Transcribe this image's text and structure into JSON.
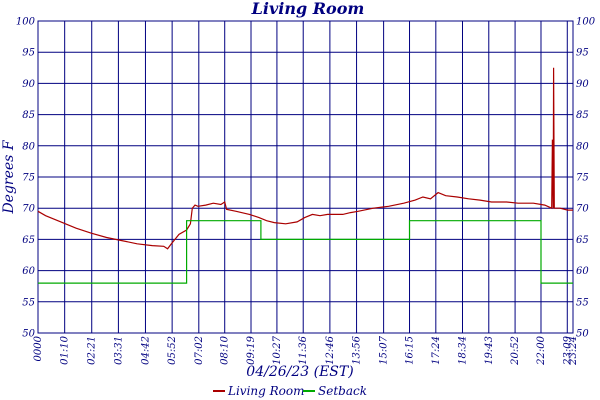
{
  "chart_data": {
    "type": "line",
    "title": "Living Room",
    "xlabel": "04/26/23 (EST)",
    "ylabel": "Degrees F",
    "ylim": [
      50,
      100
    ],
    "yticks": [
      50,
      55,
      60,
      65,
      70,
      75,
      80,
      85,
      90,
      95,
      100
    ],
    "x_unit": "minutes since 00:00",
    "xlim": [
      0,
      1404
    ],
    "xticks": [
      {
        "t": 0,
        "label": "0000"
      },
      {
        "t": 70,
        "label": "01:10"
      },
      {
        "t": 141,
        "label": "02:21"
      },
      {
        "t": 211,
        "label": "03:31"
      },
      {
        "t": 282,
        "label": "04:42"
      },
      {
        "t": 352,
        "label": "05:52"
      },
      {
        "t": 422,
        "label": "07:02"
      },
      {
        "t": 490,
        "label": "08:10"
      },
      {
        "t": 559,
        "label": "09:19"
      },
      {
        "t": 627,
        "label": "10:27"
      },
      {
        "t": 696,
        "label": "11:36"
      },
      {
        "t": 766,
        "label": "12:46"
      },
      {
        "t": 836,
        "label": "13:56"
      },
      {
        "t": 907,
        "label": "15:07"
      },
      {
        "t": 975,
        "label": "16:15"
      },
      {
        "t": 1044,
        "label": "17:24"
      },
      {
        "t": 1114,
        "label": "18:34"
      },
      {
        "t": 1183,
        "label": "19:43"
      },
      {
        "t": 1252,
        "label": "20:52"
      },
      {
        "t": 1320,
        "label": "22:00"
      },
      {
        "t": 1389,
        "label": "23:09"
      },
      {
        "t": 1404,
        "label": "23:24"
      }
    ],
    "grid": true,
    "legend_position": "bottom-center",
    "series": [
      {
        "name": "Living Room",
        "color": "#aa0000",
        "points": [
          [
            0,
            69.5
          ],
          [
            20,
            68.8
          ],
          [
            60,
            67.8
          ],
          [
            100,
            66.8
          ],
          [
            140,
            66.0
          ],
          [
            180,
            65.3
          ],
          [
            220,
            64.8
          ],
          [
            260,
            64.3
          ],
          [
            300,
            64.0
          ],
          [
            330,
            63.9
          ],
          [
            340,
            63.5
          ],
          [
            350,
            64.3
          ],
          [
            370,
            65.8
          ],
          [
            390,
            66.5
          ],
          [
            400,
            67.5
          ],
          [
            405,
            70.0
          ],
          [
            412,
            70.5
          ],
          [
            420,
            70.3
          ],
          [
            440,
            70.5
          ],
          [
            460,
            70.8
          ],
          [
            480,
            70.6
          ],
          [
            490,
            71.0
          ],
          [
            495,
            69.8
          ],
          [
            520,
            69.5
          ],
          [
            555,
            69.0
          ],
          [
            580,
            68.5
          ],
          [
            600,
            68.0
          ],
          [
            620,
            67.7
          ],
          [
            650,
            67.5
          ],
          [
            680,
            67.8
          ],
          [
            700,
            68.5
          ],
          [
            720,
            69.0
          ],
          [
            740,
            68.8
          ],
          [
            760,
            69.0
          ],
          [
            780,
            69.0
          ],
          [
            800,
            69.0
          ],
          [
            820,
            69.3
          ],
          [
            840,
            69.5
          ],
          [
            880,
            70.0
          ],
          [
            920,
            70.3
          ],
          [
            960,
            70.8
          ],
          [
            990,
            71.3
          ],
          [
            1010,
            71.8
          ],
          [
            1030,
            71.5
          ],
          [
            1050,
            72.5
          ],
          [
            1070,
            72.0
          ],
          [
            1100,
            71.8
          ],
          [
            1130,
            71.5
          ],
          [
            1160,
            71.3
          ],
          [
            1190,
            71.0
          ],
          [
            1230,
            71.0
          ],
          [
            1260,
            70.8
          ],
          [
            1300,
            70.8
          ],
          [
            1330,
            70.5
          ],
          [
            1348,
            70.0
          ],
          [
            1350,
            81.0
          ],
          [
            1352,
            70.0
          ],
          [
            1353,
            92.5
          ],
          [
            1355,
            70.0
          ],
          [
            1370,
            70.0
          ],
          [
            1390,
            69.7
          ],
          [
            1404,
            69.7
          ]
        ]
      },
      {
        "name": "Setback",
        "color": "#00aa00",
        "points": [
          [
            0,
            58
          ],
          [
            390,
            58
          ],
          [
            390,
            68
          ],
          [
            585,
            68
          ],
          [
            585,
            65
          ],
          [
            975,
            65
          ],
          [
            975,
            68
          ],
          [
            1320,
            68
          ],
          [
            1320,
            58
          ],
          [
            1404,
            58
          ]
        ]
      }
    ]
  }
}
